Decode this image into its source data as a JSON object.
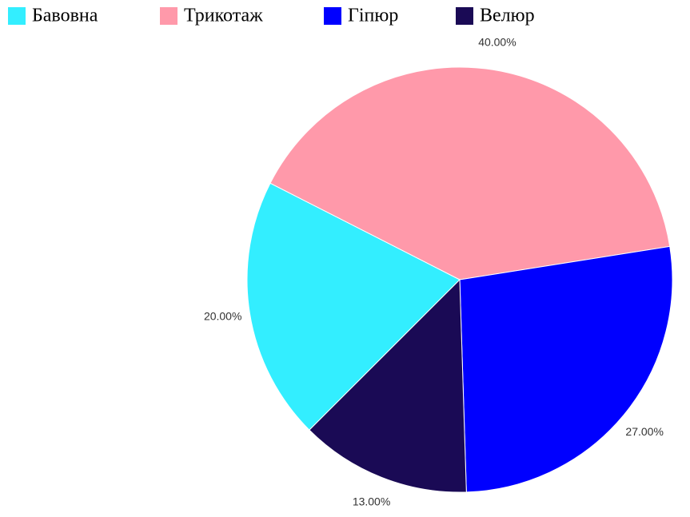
{
  "chart_data": {
    "type": "pie",
    "categories": [
      "Бавовна",
      "Трикотаж",
      "Гіпюр",
      "Велюр"
    ],
    "values": [
      20,
      40,
      27,
      13
    ],
    "value_labels": [
      "20.00%",
      "40.00%",
      "27.00%",
      "13.00%"
    ],
    "colors": [
      "#33eeff",
      "#ff99aa",
      "#0000ff",
      "#1a0a55"
    ],
    "legend": "top"
  }
}
